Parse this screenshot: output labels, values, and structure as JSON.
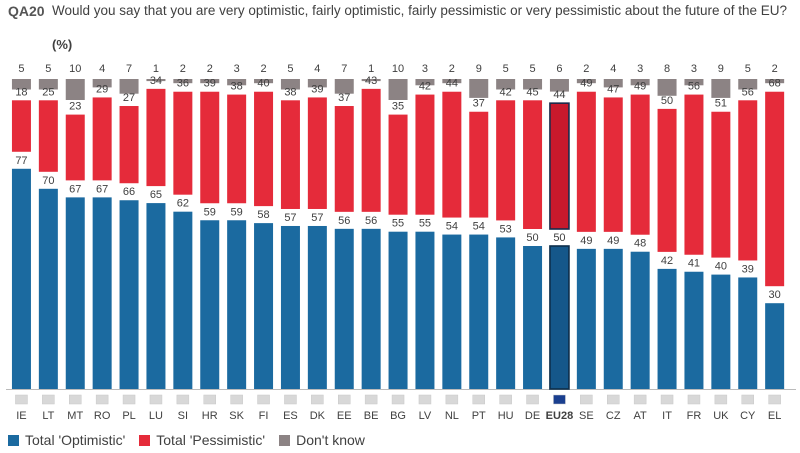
{
  "header": {
    "qcode": "QA20",
    "question": "Would you say that you are very optimistic, fairly optimistic, fairly pessimistic or very pessimistic about the future of the EU?",
    "unit": "(%)"
  },
  "legend": [
    {
      "label": "Total 'Optimistic'",
      "color": "#1b6aa0"
    },
    {
      "label": "Total 'Pessimistic'",
      "color": "#e52b3a"
    },
    {
      "label": "Don't know",
      "color": "#8c8384"
    }
  ],
  "chart_data": {
    "type": "bar",
    "stacked": true,
    "categories": [
      "IE",
      "LT",
      "MT",
      "RO",
      "PL",
      "LU",
      "SI",
      "HR",
      "SK",
      "FI",
      "ES",
      "DK",
      "EE",
      "BE",
      "BG",
      "LV",
      "NL",
      "PT",
      "HU",
      "DE",
      "EU28",
      "SE",
      "CZ",
      "AT",
      "IT",
      "FR",
      "UK",
      "CY",
      "EL"
    ],
    "highlight": "EU28",
    "series": [
      {
        "name": "Total 'Optimistic'",
        "color": "#1b6aa0",
        "values": [
          77,
          70,
          67,
          67,
          66,
          65,
          62,
          59,
          59,
          58,
          57,
          57,
          56,
          56,
          55,
          55,
          54,
          54,
          53,
          50,
          50,
          49,
          49,
          48,
          42,
          41,
          40,
          39,
          30
        ]
      },
      {
        "name": "Total 'Pessimistic'",
        "color": "#e52b3a",
        "values": [
          18,
          25,
          23,
          29,
          27,
          34,
          36,
          39,
          38,
          40,
          38,
          39,
          37,
          43,
          35,
          42,
          44,
          37,
          42,
          45,
          44,
          49,
          47,
          49,
          50,
          56,
          51,
          56,
          68
        ]
      },
      {
        "name": "Don't know",
        "color": "#8c8384",
        "values": [
          5,
          5,
          10,
          4,
          7,
          1,
          2,
          2,
          3,
          2,
          5,
          4,
          7,
          1,
          10,
          3,
          2,
          9,
          5,
          5,
          6,
          2,
          4,
          3,
          8,
          3,
          9,
          5,
          2
        ]
      }
    ],
    "ylim": [
      0,
      100
    ],
    "xlabel": "",
    "ylabel": ""
  }
}
